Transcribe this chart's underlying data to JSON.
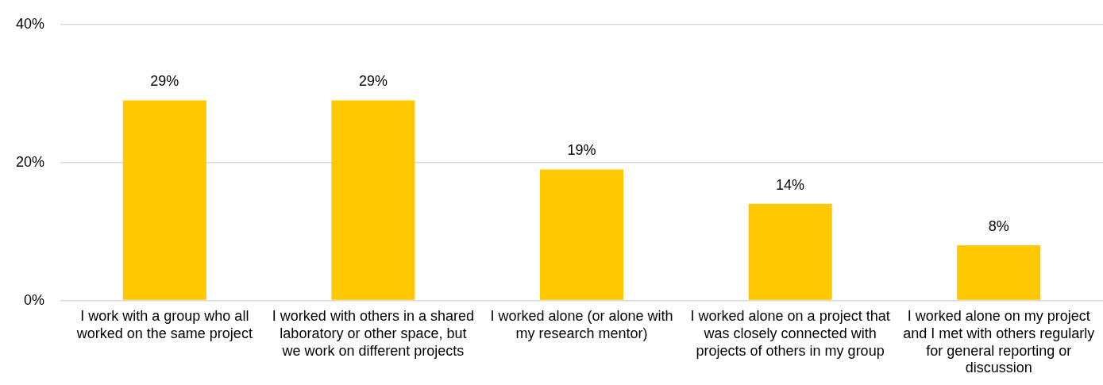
{
  "chart_data": {
    "type": "bar",
    "categories": [
      "I work with a group who all worked on the same project",
      "I worked with others in a shared laboratory or other space, but we work on different projects",
      "I worked alone (or alone with my research mentor)",
      "I worked alone on a project that was closely connected with projects of others in my group",
      "I worked alone on my project and I met with others regularly for general reporting or discussion"
    ],
    "values": [
      29,
      29,
      19,
      14,
      8
    ],
    "value_labels": [
      "29%",
      "29%",
      "19%",
      "14%",
      "8%"
    ],
    "color": "#ffc800",
    "ylim": [
      0,
      40
    ],
    "yticks": [
      {
        "value": 0,
        "label": "0%"
      },
      {
        "value": 20,
        "label": "20%"
      },
      {
        "value": 40,
        "label": "40%"
      }
    ],
    "grid": "y",
    "legend": false
  }
}
